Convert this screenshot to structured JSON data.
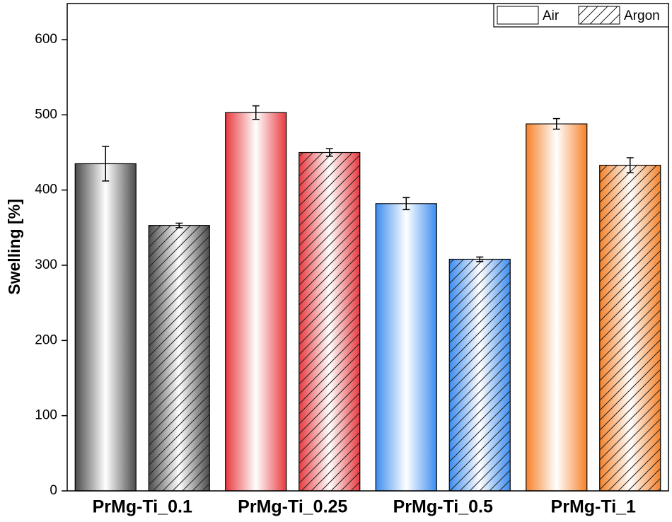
{
  "chart_data": {
    "type": "bar",
    "y_label": "Swelling [%]",
    "categories": [
      "PrMg-Ti_0.1",
      "PrMg-Ti_0.25",
      "PrMg-Ti_0.5",
      "PrMg-Ti_1"
    ],
    "category_colors": [
      "#4a4a4a",
      "#e8393e",
      "#3c8cf0",
      "#f5822a"
    ],
    "series": [
      {
        "name": "Air",
        "pattern": "none",
        "values": [
          435,
          503,
          382,
          488
        ],
        "errors": [
          23,
          9,
          8,
          7
        ]
      },
      {
        "name": "Argon",
        "pattern": "hatch",
        "values": [
          353,
          450,
          308,
          433
        ],
        "errors": [
          3,
          5,
          3,
          10
        ]
      }
    ],
    "ylim": [
      0,
      648
    ],
    "yticks": [
      0,
      100,
      200,
      300,
      400,
      500,
      600
    ],
    "legend": "top-right"
  }
}
